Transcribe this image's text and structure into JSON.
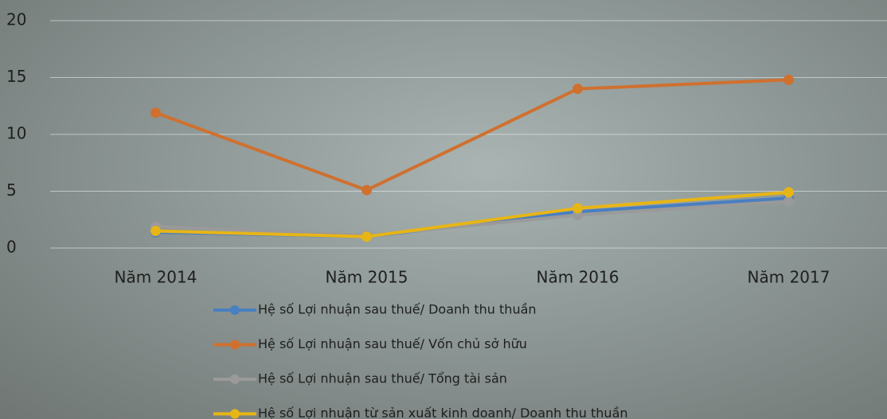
{
  "chart_data": {
    "type": "line",
    "categories": [
      "Năm 2014",
      "Năm 2015",
      "Năm 2016",
      "Năm 2017"
    ],
    "series": [
      {
        "name": "Hệ số Lợi nhuận sau thuế/ Doanh thu thuần",
        "color": "#4a7fc0",
        "values": [
          1.4,
          1.0,
          3.2,
          4.4
        ]
      },
      {
        "name": "Hệ số Lợi nhuận sau thuế/ Vốn chủ sở hữu",
        "color": "#d0702f",
        "values": [
          11.9,
          5.1,
          14.0,
          14.8
        ]
      },
      {
        "name": "Hệ số Lợi nhuận sau thuế/ Tổng tài sản",
        "color": "#9a9a9a",
        "values": [
          1.9,
          1.1,
          2.9,
          4.1
        ]
      },
      {
        "name": "Hệ số Lợi nhuận từ sản xuất kinh doanh/ Doanh thu thuần",
        "color": "#e8b516",
        "values": [
          1.5,
          1.0,
          3.5,
          4.9
        ]
      }
    ],
    "ylim": [
      0,
      20
    ],
    "yticks": [
      0,
      5,
      10,
      15,
      20
    ],
    "grid": true,
    "legend": "bottom"
  }
}
